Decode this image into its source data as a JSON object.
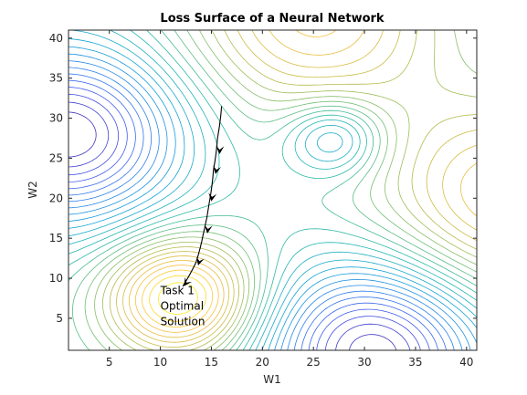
{
  "chart_data": {
    "type": "contour",
    "title": "Loss Surface of a Neural Network",
    "xlabel": "W1",
    "ylabel": "W2",
    "xlim": [
      1,
      41
    ],
    "ylim": [
      1,
      41
    ],
    "xticks": [
      5,
      10,
      15,
      20,
      25,
      30,
      35,
      40
    ],
    "yticks": [
      5,
      10,
      15,
      20,
      25,
      30,
      35,
      40
    ],
    "grid": false,
    "colormap": "parula",
    "contour_levels": 28,
    "surface_features": [
      {
        "kind": "deep minimum",
        "x": 1,
        "y": 28
      },
      {
        "kind": "deep minimum",
        "x": 31,
        "y": 1
      },
      {
        "kind": "local minimum",
        "x": 27,
        "y": 27.5
      },
      {
        "kind": "saddle",
        "x": 18.5,
        "y": 32
      },
      {
        "kind": "saddle",
        "x": 28.5,
        "y": 16
      },
      {
        "kind": "maximum",
        "x": 12,
        "y": 7.5
      },
      {
        "kind": "ridge",
        "x": 25,
        "y": 43
      },
      {
        "kind": "ridge",
        "x": 44,
        "y": 20
      }
    ],
    "trajectory": {
      "color": "#000000",
      "points": [
        {
          "x": 16.0,
          "y": 31.5
        },
        {
          "x": 15.6,
          "y": 27.5
        },
        {
          "x": 15.2,
          "y": 23.5
        },
        {
          "x": 14.8,
          "y": 19.5
        },
        {
          "x": 14.2,
          "y": 15.5
        },
        {
          "x": 13.5,
          "y": 12.0
        },
        {
          "x": 12.2,
          "y": 9.0
        }
      ],
      "arrowheads_at": [
        {
          "x": 15.8,
          "y": 25.5
        },
        {
          "x": 15.4,
          "y": 23.0
        },
        {
          "x": 15.0,
          "y": 19.6
        },
        {
          "x": 14.6,
          "y": 15.6
        },
        {
          "x": 13.7,
          "y": 11.6
        },
        {
          "x": 12.3,
          "y": 9.0
        }
      ]
    },
    "annotations": [
      {
        "text_lines": [
          "Task 1",
          "Optimal",
          "Solution"
        ],
        "x": 10,
        "y": 8
      }
    ]
  }
}
